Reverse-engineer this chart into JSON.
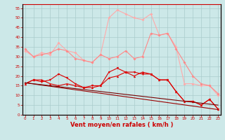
{
  "background_color": "#cce8e8",
  "grid_color": "#aacccc",
  "xlabel": "Vent moyen/en rafales ( km/h )",
  "xlabel_color": "#cc0000",
  "xlabel_fontsize": 6,
  "xtick_color": "#cc0000",
  "ytick_color": "#cc0000",
  "ytick_vals": [
    0,
    5,
    10,
    15,
    20,
    25,
    30,
    35,
    40,
    45,
    50,
    55
  ],
  "xtick_vals": [
    0,
    1,
    2,
    3,
    4,
    5,
    6,
    7,
    8,
    9,
    10,
    11,
    12,
    13,
    14,
    15,
    16,
    17,
    18,
    19,
    20,
    21,
    22,
    23
  ],
  "x": [
    0,
    1,
    2,
    3,
    4,
    5,
    6,
    7,
    8,
    9,
    10,
    11,
    12,
    13,
    14,
    15,
    16,
    17,
    18,
    19,
    20,
    21,
    22,
    23
  ],
  "line_rafales": [
    33,
    30,
    32,
    31,
    37,
    33,
    32,
    28,
    27,
    31,
    50,
    54,
    52,
    50,
    49,
    52,
    41,
    42,
    35,
    16,
    16,
    15,
    15,
    10
  ],
  "line_moy_high": [
    34,
    30,
    31,
    32,
    34,
    33,
    29,
    28,
    27,
    31,
    29,
    30,
    33,
    29,
    30,
    42,
    41,
    42,
    34,
    27,
    20,
    16,
    15,
    11
  ],
  "line_red1": [
    16,
    18,
    17,
    18,
    21,
    19,
    16,
    14,
    15,
    15,
    22,
    24,
    22,
    22,
    21,
    21,
    18,
    18,
    12,
    7,
    7,
    5,
    8,
    3
  ],
  "line_red2": [
    16,
    18,
    18,
    16,
    15,
    16,
    15,
    14,
    14,
    15,
    19,
    20,
    22,
    20,
    22,
    21,
    18,
    18,
    12,
    7,
    7,
    5,
    8,
    3
  ],
  "line_trend1": [
    16.5,
    15.9,
    15.3,
    14.7,
    14.1,
    13.5,
    12.9,
    12.3,
    11.7,
    11.1,
    10.5,
    9.9,
    9.3,
    8.7,
    8.1,
    7.5,
    6.9,
    6.3,
    5.7,
    5.1,
    4.5,
    3.9,
    3.3,
    2.7
  ],
  "line_trend2": [
    16.5,
    16.0,
    15.5,
    15.0,
    14.5,
    14.0,
    13.5,
    13.0,
    12.5,
    12.0,
    11.5,
    11.0,
    10.5,
    10.0,
    9.5,
    9.0,
    8.5,
    8.0,
    7.5,
    7.0,
    6.5,
    6.0,
    5.5,
    5.0
  ],
  "color_rafales": "#ffaaaa",
  "color_moy_high": "#ff8888",
  "color_red": "#dd0000",
  "color_trend1": "#990000",
  "color_trend2": "#770000"
}
